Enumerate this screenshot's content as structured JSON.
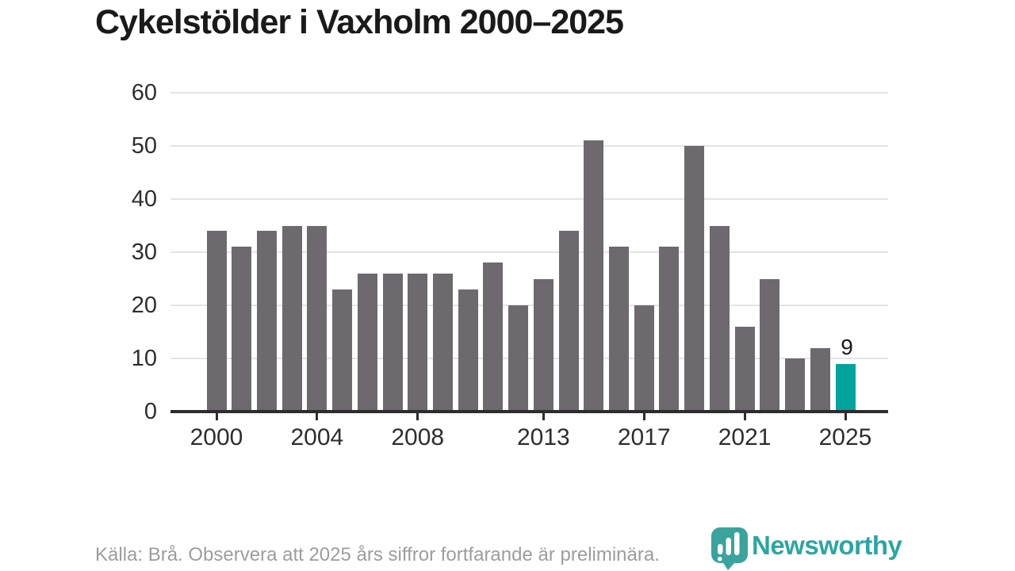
{
  "title": "Cykelstölder i Vaxholm 2000–2025",
  "chart_data": {
    "type": "bar",
    "title": "Cykelstölder i Vaxholm 2000–2025",
    "categories": [
      "2000",
      "2001",
      "2002",
      "2003",
      "2004",
      "2005",
      "2006",
      "2007",
      "2008",
      "2009",
      "2010",
      "2011",
      "2012",
      "2013",
      "2014",
      "2015",
      "2016",
      "2017",
      "2018",
      "2019",
      "2020",
      "2021",
      "2022",
      "2023",
      "2024",
      "2025"
    ],
    "values": [
      34,
      31,
      34,
      35,
      35,
      23,
      26,
      26,
      26,
      26,
      23,
      28,
      20,
      25,
      34,
      51,
      31,
      20,
      31,
      50,
      35,
      16,
      25,
      10,
      12,
      9
    ],
    "xlabel": "",
    "ylabel": "",
    "ylim": [
      0,
      60
    ],
    "yticks": [
      0,
      10,
      20,
      30,
      40,
      50,
      60
    ],
    "xtick_labels": [
      "2000",
      "2004",
      "2008",
      "2013",
      "2017",
      "2021",
      "2025"
    ],
    "xtick_indices": [
      0,
      4,
      8,
      13,
      17,
      21,
      25
    ],
    "grid": "horizontal",
    "legend": "none",
    "bar_color": "#6d696f",
    "highlight_index": 25,
    "highlight_color": "#01a49c",
    "highlight_value_label": "9"
  },
  "footer": {
    "source_text": "Källa: Brå. Observera att 2025 års siffror fortfarande är preliminära."
  },
  "logo": {
    "wordmark": "Newsworthy",
    "color": "#2ca6a1",
    "icon": "newsworthy-bubble-barchart-icon"
  }
}
